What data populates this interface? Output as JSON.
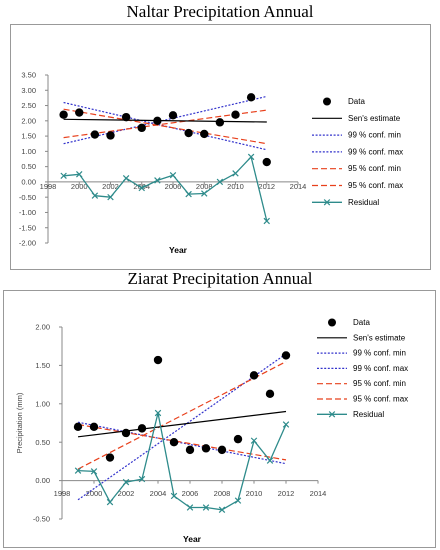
{
  "titles": [
    "Naltar Precipitation Annual",
    "Ziarat Precipitation Annual"
  ],
  "colors": {
    "data": "#000000",
    "sens": "#000000",
    "conf99": "#3333cc",
    "conf95": "#e8401c",
    "residual": "#2e8b8b"
  },
  "chart_data": [
    {
      "type": "scatter",
      "title": "Naltar Precipitation Annual",
      "xlabel": "Year",
      "ylabel": "",
      "xlim": [
        1998,
        2014
      ],
      "ylim": [
        -2.0,
        3.5
      ],
      "x_ticks": [
        "1998",
        "2000",
        "2002",
        "2004",
        "2006",
        "2008",
        "2010",
        "2012",
        "2014"
      ],
      "y_ticks": [
        "3.50",
        "3.00",
        "2.50",
        "2.00",
        "1.50",
        "1.00",
        "0.50",
        "0.00",
        "-0.50",
        "-1.00",
        "-1.50",
        "-2.00"
      ],
      "legend": [
        "Data",
        "Sen's estimate",
        "99 % conf. min",
        "99 % conf. max",
        "95 % conf. min",
        "95 % conf. max",
        "Residual"
      ],
      "series": [
        {
          "name": "Data",
          "kind": "points",
          "x": [
            1999,
            2000,
            2001,
            2002,
            2003,
            2004,
            2005,
            2006,
            2007,
            2008,
            2009,
            2010,
            2011,
            2012
          ],
          "y": [
            2.2,
            2.27,
            1.55,
            1.52,
            2.12,
            1.77,
            2.0,
            2.18,
            1.6,
            1.57,
            1.95,
            2.2,
            2.77,
            0.65
          ]
        },
        {
          "name": "Sen's estimate",
          "kind": "line",
          "x": [
            1999,
            2012
          ],
          "y": [
            2.05,
            1.96
          ]
        },
        {
          "name": "99 % conf. min",
          "kind": "line",
          "x": [
            1999,
            2012
          ],
          "y": [
            1.25,
            2.8
          ]
        },
        {
          "name": "99 % conf. max",
          "kind": "line",
          "x": [
            1999,
            2012
          ],
          "y": [
            2.6,
            1.05
          ]
        },
        {
          "name": "95 % conf. min",
          "kind": "line",
          "x": [
            1999,
            2012
          ],
          "y": [
            1.45,
            2.35
          ]
        },
        {
          "name": "95 % conf. max",
          "kind": "line",
          "x": [
            1999,
            2012
          ],
          "y": [
            2.38,
            1.25
          ]
        },
        {
          "name": "Residual",
          "kind": "line",
          "x": [
            1999,
            2000,
            2001,
            2002,
            2003,
            2004,
            2005,
            2006,
            2007,
            2008,
            2009,
            2010,
            2011,
            2012
          ],
          "y": [
            0.2,
            0.25,
            -0.45,
            -0.5,
            0.12,
            -0.2,
            0.05,
            0.22,
            -0.4,
            -0.38,
            0.0,
            0.28,
            0.82,
            -1.28
          ]
        }
      ]
    },
    {
      "type": "scatter",
      "title": "Ziarat Precipitation Annual",
      "xlabel": "Year",
      "ylabel": "Precipitation (mm)",
      "xlim": [
        1998,
        2014
      ],
      "ylim": [
        -0.5,
        2.0
      ],
      "x_ticks": [
        "1998",
        "2000",
        "2002",
        "2004",
        "2006",
        "2008",
        "2010",
        "2012",
        "2014"
      ],
      "y_ticks": [
        "2.00",
        "1.50",
        "1.00",
        "0.50",
        "0.00",
        "-0.50"
      ],
      "legend": [
        "Data",
        "Sen's estimate",
        "99 % conf. min",
        "99 % conf. max",
        "95 % conf. min",
        "95 % conf. max",
        "Residual"
      ],
      "series": [
        {
          "name": "Data",
          "kind": "points",
          "x": [
            1999,
            2000,
            2001,
            2002,
            2003,
            2004,
            2005,
            2006,
            2007,
            2008,
            2009,
            2010,
            2011,
            2012
          ],
          "y": [
            0.7,
            0.7,
            0.3,
            0.62,
            0.68,
            1.57,
            0.5,
            0.4,
            0.42,
            0.4,
            0.54,
            1.37,
            1.13,
            1.63
          ]
        },
        {
          "name": "Sen's estimate",
          "kind": "line",
          "x": [
            1999,
            2012
          ],
          "y": [
            0.57,
            0.9
          ]
        },
        {
          "name": "99 % conf. min",
          "kind": "line",
          "x": [
            1999,
            2012
          ],
          "y": [
            -0.25,
            1.65
          ]
        },
        {
          "name": "99 % conf. max",
          "kind": "line",
          "x": [
            1999,
            2012
          ],
          "y": [
            0.76,
            0.22
          ]
        },
        {
          "name": "95 % conf. min",
          "kind": "line",
          "x": [
            1999,
            2012
          ],
          "y": [
            0.15,
            1.55
          ]
        },
        {
          "name": "95 % conf. max",
          "kind": "line",
          "x": [
            1999,
            2012
          ],
          "y": [
            0.73,
            0.27
          ]
        },
        {
          "name": "Residual",
          "kind": "line",
          "x": [
            1999,
            2000,
            2001,
            2002,
            2003,
            2004,
            2005,
            2006,
            2007,
            2008,
            2009,
            2010,
            2011,
            2012
          ],
          "y": [
            0.13,
            0.12,
            -0.28,
            -0.02,
            0.02,
            0.88,
            -0.2,
            -0.35,
            -0.35,
            -0.38,
            -0.26,
            0.52,
            0.26,
            0.73
          ]
        }
      ]
    }
  ]
}
